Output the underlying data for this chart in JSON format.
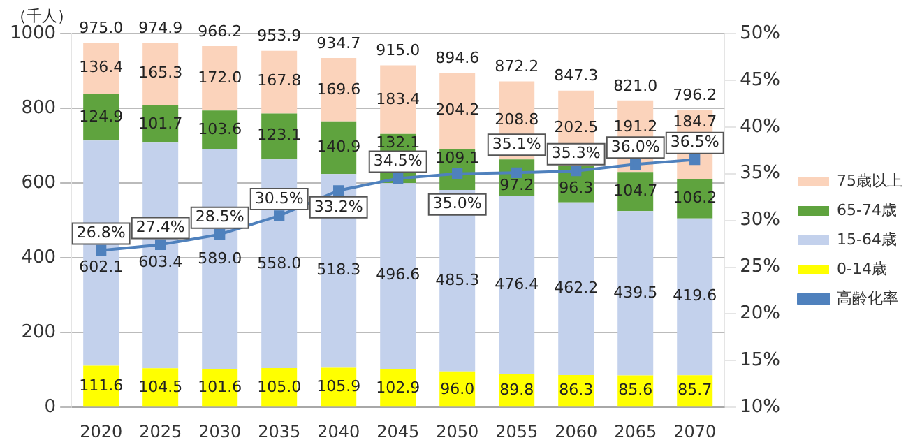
{
  "chart_data": {
    "type": "bar",
    "stacked": true,
    "ylabel": "（千人）",
    "categories": [
      "2020",
      "2025",
      "2030",
      "2035",
      "2040",
      "2045",
      "2050",
      "2055",
      "2060",
      "2065",
      "2070"
    ],
    "series": [
      {
        "name": "0-14歳",
        "color": "#ffff00",
        "values": [
          111.6,
          104.5,
          101.6,
          105.0,
          105.9,
          102.9,
          96.0,
          89.8,
          86.3,
          85.6,
          85.7
        ],
        "value_labels": [
          "111.6",
          "104.5",
          "101.6",
          "105.0",
          "105.9",
          "102.9",
          "96.0",
          "89.8",
          "86.3",
          "85.6",
          "85.7"
        ]
      },
      {
        "name": "15-64歳",
        "color": "#c3d1ec",
        "values": [
          602.1,
          603.4,
          589.0,
          558.0,
          518.3,
          496.6,
          485.3,
          476.4,
          462.2,
          439.5,
          419.6
        ],
        "value_labels": [
          "602.1",
          "603.4",
          "589.0",
          "558.0",
          "518.3",
          "496.6",
          "485.3",
          "476.4",
          "462.2",
          "439.5",
          "419.6"
        ]
      },
      {
        "name": "65-74歳",
        "color": "#5fa33e",
        "values": [
          124.9,
          101.7,
          103.6,
          123.1,
          140.9,
          132.1,
          109.1,
          97.2,
          96.3,
          104.7,
          106.2
        ],
        "value_labels": [
          "124.9",
          "101.7",
          "103.6",
          "123.1",
          "140.9",
          "132.1",
          "109.1",
          "97.2",
          "96.3",
          "104.7",
          "106.2"
        ]
      },
      {
        "name": "75歳以上",
        "color": "#fbd3bb",
        "values": [
          136.4,
          165.3,
          172.0,
          167.8,
          169.6,
          183.4,
          204.2,
          208.8,
          202.5,
          191.2,
          184.7
        ],
        "value_labels": [
          "136.4",
          "165.3",
          "172.0",
          "167.8",
          "169.6",
          "183.4",
          "204.2",
          "208.8",
          "202.5",
          "191.2",
          "184.7"
        ]
      },
      {
        "name": "高齢化率",
        "type": "line",
        "axis": "y2",
        "color": "#4f81bd",
        "marker": "square",
        "values": [
          26.8,
          27.4,
          28.5,
          30.5,
          33.2,
          34.5,
          35.0,
          35.1,
          35.3,
          36.0,
          36.5
        ],
        "value_labels": [
          "26.8%",
          "27.4%",
          "28.5%",
          "30.5%",
          "33.2%",
          "34.5%",
          "35.0%",
          "35.1%",
          "35.3%",
          "36.0%",
          "36.5%"
        ]
      }
    ],
    "totals": [
      "975.0",
      "974.9",
      "966.2",
      "953.9",
      "934.7",
      "915.0",
      "894.6",
      "872.2",
      "847.3",
      "821.0",
      "796.2"
    ],
    "ylim": [
      0,
      1000
    ],
    "yticks": [
      0,
      200,
      400,
      600,
      800,
      1000
    ],
    "y2lim": [
      10,
      50
    ],
    "y2ticks": [
      {
        "value": 10,
        "label": "10%"
      },
      {
        "value": 15,
        "label": "15%"
      },
      {
        "value": 20,
        "label": "20%"
      },
      {
        "value": 25,
        "label": "25%"
      },
      {
        "value": 30,
        "label": "30%"
      },
      {
        "value": 35,
        "label": "35%"
      },
      {
        "value": 40,
        "label": "40%"
      },
      {
        "value": 45,
        "label": "45%"
      },
      {
        "value": 50,
        "label": "50%"
      }
    ],
    "grid": "y",
    "legend": "right"
  }
}
